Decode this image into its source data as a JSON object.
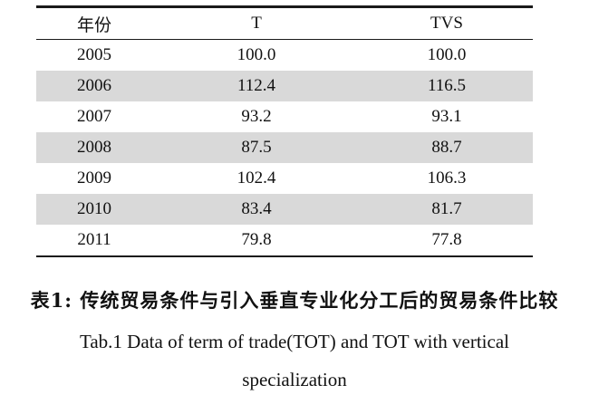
{
  "table": {
    "headers": [
      "年份",
      "T",
      "TVS"
    ],
    "rows": [
      {
        "year": "2005",
        "t": "100.0",
        "tvs": "100.0"
      },
      {
        "year": "2006",
        "t": "112.4",
        "tvs": "116.5"
      },
      {
        "year": "2007",
        "t": "93.2",
        "tvs": "93.1"
      },
      {
        "year": "2008",
        "t": "87.5",
        "tvs": "88.7"
      },
      {
        "year": "2009",
        "t": "102.4",
        "tvs": "106.3"
      },
      {
        "year": "2010",
        "t": "83.4",
        "tvs": "81.7"
      },
      {
        "year": "2011",
        "t": "79.8",
        "tvs": "77.8"
      }
    ],
    "shaded_row_color": "#d9d9d9"
  },
  "caption": {
    "chinese": "表1: 传统贸易条件与引入垂直专业化分工后的贸易条件比较",
    "english_line1": "Tab.1 Data of term of trade(TOT) and TOT with vertical",
    "english_line2": "specialization"
  }
}
